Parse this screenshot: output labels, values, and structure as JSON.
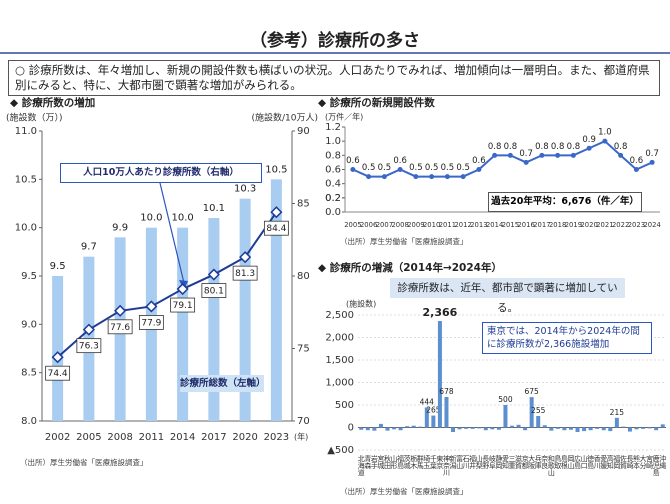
{
  "header": {
    "title": "（参考）診療所の多さ"
  },
  "summary": "○ 診療所数は、年々増加し、新規の開設件数も横ばいの状況。人口あたりでみれば、増加傾向は一層明白。また、都道府県別にみると、特に、大都市圏で顕著な増加がみられる。",
  "chart_data": [
    {
      "type": "bar_line",
      "title": "◆ 診療所数の増加",
      "y_label": "(施設数（万）)",
      "y2_label": "(施設数/10万人)",
      "x_unit": "(年)",
      "categories": [
        "2002",
        "2005",
        "2008",
        "2011",
        "2014",
        "2017",
        "2020",
        "2023"
      ],
      "series": [
        {
          "name": "診療所総数（左軸）",
          "type": "bar",
          "color": "#a9cdf0",
          "values": [
            9.5,
            9.7,
            9.9,
            10.0,
            10.0,
            10.1,
            10.3,
            10.5
          ],
          "value_labels": [
            "9.5",
            "9.7",
            "9.9",
            "10.0",
            "10.0",
            "10.1",
            "10.3",
            "10.5"
          ]
        },
        {
          "name": "人口10万人あたり診療所数（右軸）",
          "type": "line",
          "axis": "y2",
          "color": "#1f3b96",
          "values": [
            74.4,
            76.3,
            77.6,
            77.9,
            79.1,
            80.1,
            81.3,
            84.4
          ]
        }
      ],
      "ylim": [
        8,
        11
      ],
      "yticks": [
        {
          "value": 8,
          "label": "8.0"
        },
        8.5,
        {
          "value": 9,
          "label": "9.0"
        },
        9.5,
        {
          "value": 10,
          "label": "10.0"
        },
        10.5,
        {
          "value": 11,
          "label": "11.0"
        }
      ],
      "y2lim": [
        70,
        90
      ],
      "y2ticks": [
        70,
        75,
        80,
        85,
        90
      ],
      "source": "（出所）厚生労働省「医療施設調査」"
    },
    {
      "type": "line",
      "title": "◆ 診療所の新規開設件数",
      "y_label": "(万件／年)",
      "categories": [
        "2005",
        "2006",
        "2007",
        "2008",
        "2009",
        "2010",
        "2011",
        "2012",
        "2013",
        "2014",
        "2015",
        "2016",
        "2017",
        "2018",
        "2019",
        "2020",
        "2021",
        "2022",
        "2023",
        "2024"
      ],
      "values": [
        0.6,
        0.5,
        0.5,
        0.6,
        0.5,
        0.5,
        0.5,
        0.5,
        0.6,
        0.8,
        0.8,
        0.7,
        0.8,
        0.8,
        0.8,
        0.9,
        1.0,
        0.8,
        0.6,
        0.7
      ],
      "value_labels": [
        "0.6",
        "0.5",
        "0.5",
        "0.6",
        "0.5",
        "0.5",
        "0.5",
        "0.5",
        "0.6",
        "0.8",
        "0.8",
        "0.7",
        "0.8",
        "0.8",
        "0.8",
        "0.9",
        "1.0",
        "0.8",
        "0.6",
        "0.7"
      ],
      "color": "#3b68c8",
      "ylim": [
        0,
        1.2
      ],
      "yticks": [
        {
          "value": 0,
          "label": "0.0"
        },
        0.2,
        0.4,
        0.6,
        0.8,
        {
          "value": 1,
          "label": "1.0"
        },
        0.2,
        1.2
      ],
      "annotation": "過去20年平均：6,676（件／年）",
      "source": "（出所）厚生労働省「医療施設調査」"
    },
    {
      "type": "bar",
      "title": "◆ 診療所の増減（2014年→2024年）",
      "subtitle": "診療所数は、近年、都市部で顕著に増加している。",
      "y_label": "(施設数)",
      "categories": [
        "北海道",
        "青森",
        "岩手",
        "宮城",
        "秋田",
        "山形",
        "福島",
        "茨城",
        "栃木",
        "群馬",
        "埼玉",
        "千葉",
        "東京",
        "神奈川",
        "新潟",
        "富山",
        "石川",
        "福井",
        "山梨",
        "長野",
        "岐阜",
        "静岡",
        "愛知",
        "三重",
        "滋賀",
        "京都",
        "大阪",
        "兵庫",
        "奈良",
        "和歌山",
        "鳥取",
        "島根",
        "岡山",
        "広島",
        "山口",
        "徳島",
        "香川",
        "愛媛",
        "高知",
        "福岡",
        "佐賀",
        "長崎",
        "熊本",
        "大分",
        "宮崎",
        "鹿児島",
        "沖縄"
      ],
      "values": [
        -50,
        -60,
        -70,
        80,
        -70,
        -40,
        -60,
        30,
        40,
        20,
        444,
        265,
        2366,
        678,
        -100,
        -40,
        -30,
        -30,
        -20,
        -60,
        -40,
        -50,
        500,
        40,
        60,
        -60,
        675,
        255,
        50,
        -70,
        -30,
        -60,
        -50,
        -100,
        -80,
        -60,
        -30,
        -60,
        -80,
        215,
        20,
        -90,
        -40,
        -30,
        -20,
        -60,
        70
      ],
      "value_labels": [
        null,
        null,
        null,
        null,
        null,
        null,
        null,
        null,
        null,
        null,
        "444",
        "265",
        "2,366",
        "678",
        null,
        null,
        null,
        null,
        null,
        null,
        null,
        null,
        "500",
        null,
        null,
        null,
        "675",
        "255",
        null,
        null,
        null,
        null,
        null,
        null,
        null,
        null,
        null,
        null,
        null,
        "215",
        null,
        null,
        null,
        null,
        null,
        null,
        null
      ],
      "color": "#5b8fd0",
      "ylim": [
        -500,
        2500
      ],
      "yticks": [
        {
          "value": -500,
          "label": "▲500"
        },
        0,
        500,
        {
          "value": 1000,
          "label": "1,000"
        },
        {
          "value": 1500,
          "label": "1,500"
        },
        {
          "value": 2000,
          "label": "2,000"
        },
        {
          "value": 2500,
          "label": "2,500"
        }
      ],
      "grid": true,
      "annotation": "東京では、2014年から2024年の間に診療所数が2,366施設増加",
      "source": "（出所）厚生労働省「医療施設調査」"
    }
  ]
}
